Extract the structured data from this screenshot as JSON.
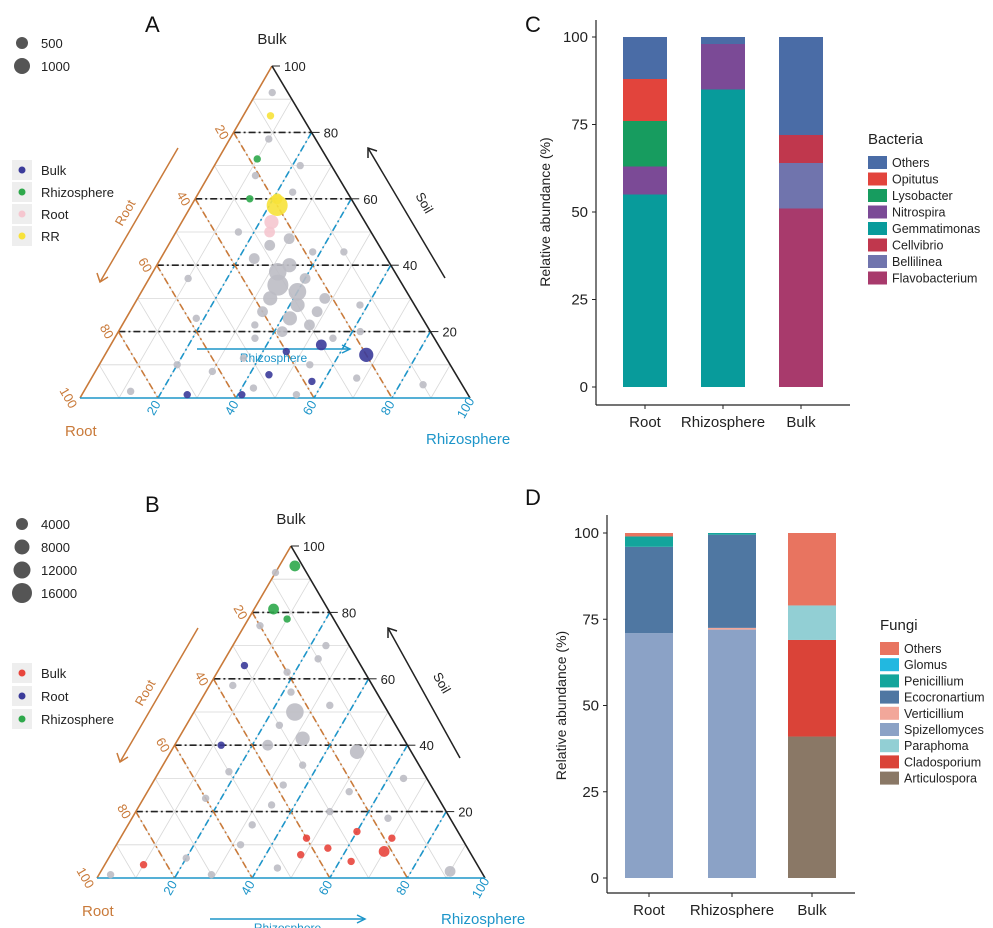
{
  "colors": {
    "root": "#c97a3a",
    "rhizo": "#1d95c9",
    "bulk": "#222222",
    "grid": "#d8d8d8",
    "grey_point": "#bcbcc4"
  },
  "chart_data": [
    {
      "panel": "A",
      "type": "scatter",
      "subtype": "ternary",
      "apex_label": "Bulk",
      "left_label": "Root",
      "right_label": "Rhizosphere",
      "side_left_label": "Root",
      "side_right_label": "Soil",
      "bottom_arrow_label": "Rhizosphere",
      "ticks": [
        "20",
        "40",
        "60",
        "80",
        "100"
      ],
      "size_legend": [
        {
          "label": "500",
          "value": 500
        },
        {
          "label": "1000",
          "value": 1000
        }
      ],
      "color_legend": [
        {
          "label": "Bulk",
          "color": "#3b3b9a"
        },
        {
          "label": "Rhizosphere",
          "color": "#2ea84b"
        },
        {
          "label": "Root",
          "color": "#f5c6cf"
        },
        {
          "label": "RR",
          "color": "#f7e23a"
        }
      ],
      "points": [
        {
          "a": 92,
          "b": 4,
          "c": 4,
          "g": "grey",
          "s": 1
        },
        {
          "a": 85,
          "b": 8,
          "c": 7,
          "g": "RR",
          "s": 1
        },
        {
          "a": 78,
          "b": 12,
          "c": 10,
          "g": "grey",
          "s": 1
        },
        {
          "a": 72,
          "b": 18,
          "c": 10,
          "g": "Rhizosphere",
          "s": 1
        },
        {
          "a": 70,
          "b": 8,
          "c": 22,
          "g": "grey",
          "s": 1
        },
        {
          "a": 67,
          "b": 21,
          "c": 12,
          "g": "grey",
          "s": 1
        },
        {
          "a": 60,
          "b": 19,
          "c": 21,
          "g": "RR",
          "s": 2
        },
        {
          "a": 58,
          "b": 20,
          "c": 22,
          "g": "RR",
          "s": 5
        },
        {
          "a": 60,
          "b": 26,
          "c": 14,
          "g": "Rhizosphere",
          "s": 1
        },
        {
          "a": 62,
          "b": 14,
          "c": 24,
          "g": "grey",
          "s": 1
        },
        {
          "a": 53,
          "b": 24,
          "c": 23,
          "g": "Root",
          "s": 3
        },
        {
          "a": 50,
          "b": 26,
          "c": 24,
          "g": "Root",
          "s": 2
        },
        {
          "a": 48,
          "b": 22,
          "c": 30,
          "g": "grey",
          "s": 2
        },
        {
          "a": 46,
          "b": 28,
          "c": 26,
          "g": "grey",
          "s": 2
        },
        {
          "a": 44,
          "b": 18,
          "c": 38,
          "g": "grey",
          "s": 1
        },
        {
          "a": 42,
          "b": 34,
          "c": 24,
          "g": "grey",
          "s": 2
        },
        {
          "a": 40,
          "b": 26,
          "c": 34,
          "g": "grey",
          "s": 3
        },
        {
          "a": 38,
          "b": 30,
          "c": 32,
          "g": "grey",
          "s": 4
        },
        {
          "a": 36,
          "b": 24,
          "c": 40,
          "g": "grey",
          "s": 2
        },
        {
          "a": 34,
          "b": 32,
          "c": 34,
          "g": "grey",
          "s": 5
        },
        {
          "a": 32,
          "b": 28,
          "c": 40,
          "g": "grey",
          "s": 4
        },
        {
          "a": 30,
          "b": 36,
          "c": 34,
          "g": "grey",
          "s": 3
        },
        {
          "a": 30,
          "b": 22,
          "c": 48,
          "g": "grey",
          "s": 2
        },
        {
          "a": 28,
          "b": 30,
          "c": 42,
          "g": "grey",
          "s": 3
        },
        {
          "a": 26,
          "b": 40,
          "c": 34,
          "g": "grey",
          "s": 2
        },
        {
          "a": 26,
          "b": 26,
          "c": 48,
          "g": "grey",
          "s": 2
        },
        {
          "a": 24,
          "b": 34,
          "c": 42,
          "g": "grey",
          "s": 3
        },
        {
          "a": 22,
          "b": 44,
          "c": 34,
          "g": "grey",
          "s": 1
        },
        {
          "a": 22,
          "b": 30,
          "c": 48,
          "g": "grey",
          "s": 2
        },
        {
          "a": 20,
          "b": 38,
          "c": 42,
          "g": "grey",
          "s": 2
        },
        {
          "a": 18,
          "b": 26,
          "c": 56,
          "g": "grey",
          "s": 1
        },
        {
          "a": 18,
          "b": 46,
          "c": 36,
          "g": "grey",
          "s": 1
        },
        {
          "a": 16,
          "b": 30,
          "c": 54,
          "g": "Bulk",
          "s": 2
        },
        {
          "a": 14,
          "b": 40,
          "c": 46,
          "g": "Bulk",
          "s": 1
        },
        {
          "a": 13,
          "b": 20,
          "c": 67,
          "g": "Bulk",
          "s": 3
        },
        {
          "a": 12,
          "b": 52,
          "c": 36,
          "g": "grey",
          "s": 1
        },
        {
          "a": 10,
          "b": 36,
          "c": 54,
          "g": "grey",
          "s": 1
        },
        {
          "a": 8,
          "b": 62,
          "c": 30,
          "g": "grey",
          "s": 1
        },
        {
          "a": 7,
          "b": 48,
          "c": 45,
          "g": "Bulk",
          "s": 1
        },
        {
          "a": 6,
          "b": 26,
          "c": 68,
          "g": "grey",
          "s": 1
        },
        {
          "a": 5,
          "b": 38,
          "c": 57,
          "g": "Bulk",
          "s": 1
        },
        {
          "a": 3,
          "b": 54,
          "c": 43,
          "g": "grey",
          "s": 1
        },
        {
          "a": 1,
          "b": 72,
          "c": 27,
          "g": "Bulk",
          "s": 1
        },
        {
          "a": 1,
          "b": 58,
          "c": 41,
          "g": "Bulk",
          "s": 1
        },
        {
          "a": 1,
          "b": 44,
          "c": 55,
          "g": "grey",
          "s": 1
        },
        {
          "a": 2,
          "b": 86,
          "c": 12,
          "g": "grey",
          "s": 1
        },
        {
          "a": 4,
          "b": 10,
          "c": 86,
          "g": "grey",
          "s": 1
        },
        {
          "a": 36,
          "b": 54,
          "c": 10,
          "g": "grey",
          "s": 1
        },
        {
          "a": 44,
          "b": 10,
          "c": 46,
          "g": "grey",
          "s": 1
        },
        {
          "a": 50,
          "b": 34,
          "c": 16,
          "g": "grey",
          "s": 1
        },
        {
          "a": 24,
          "b": 58,
          "c": 18,
          "g": "grey",
          "s": 1
        },
        {
          "a": 28,
          "b": 14,
          "c": 58,
          "g": "grey",
          "s": 1
        },
        {
          "a": 10,
          "b": 70,
          "c": 20,
          "g": "grey",
          "s": 1
        },
        {
          "a": 20,
          "b": 18,
          "c": 62,
          "g": "grey",
          "s": 1
        }
      ]
    },
    {
      "panel": "B",
      "type": "scatter",
      "subtype": "ternary",
      "apex_label": "Bulk",
      "left_label": "Root",
      "right_label": "Rhizosphere",
      "side_left_label": "Root",
      "side_right_label": "Soil",
      "bottom_arrow_label": "Rhizosphere",
      "ticks": [
        "20",
        "40",
        "60",
        "80",
        "100"
      ],
      "size_legend": [
        {
          "label": "4000",
          "value": 4000
        },
        {
          "label": "8000",
          "value": 8000
        },
        {
          "label": "12000",
          "value": 12000
        },
        {
          "label": "16000",
          "value": 16000
        }
      ],
      "color_legend": [
        {
          "label": "Bulk",
          "color": "#e8453c"
        },
        {
          "label": "Root",
          "color": "#3b3b9a"
        },
        {
          "label": "Rhizosphere",
          "color": "#2ea84b"
        }
      ],
      "points": [
        {
          "a": 94,
          "b": 2,
          "c": 4,
          "g": "Rhizosphere",
          "s": 2
        },
        {
          "a": 92,
          "b": 8,
          "c": 0,
          "g": "grey",
          "s": 1
        },
        {
          "a": 81,
          "b": 14,
          "c": 5,
          "g": "Rhizosphere",
          "s": 2
        },
        {
          "a": 78,
          "b": 12,
          "c": 10,
          "g": "Rhizosphere",
          "s": 1
        },
        {
          "a": 76,
          "b": 20,
          "c": 4,
          "g": "grey",
          "s": 1
        },
        {
          "a": 70,
          "b": 6,
          "c": 24,
          "g": "grey",
          "s": 1
        },
        {
          "a": 64,
          "b": 30,
          "c": 6,
          "g": "Root",
          "s": 1
        },
        {
          "a": 62,
          "b": 20,
          "c": 18,
          "g": "grey",
          "s": 1
        },
        {
          "a": 56,
          "b": 22,
          "c": 22,
          "g": "grey",
          "s": 1
        },
        {
          "a": 52,
          "b": 14,
          "c": 34,
          "g": "grey",
          "s": 1
        },
        {
          "a": 50,
          "b": 24,
          "c": 26,
          "g": "grey",
          "s": 4
        },
        {
          "a": 46,
          "b": 30,
          "c": 24,
          "g": "grey",
          "s": 1
        },
        {
          "a": 42,
          "b": 26,
          "c": 32,
          "g": "grey",
          "s": 3
        },
        {
          "a": 40,
          "b": 48,
          "c": 12,
          "g": "Root",
          "s": 1
        },
        {
          "a": 40,
          "b": 36,
          "c": 24,
          "g": "grey",
          "s": 2
        },
        {
          "a": 38,
          "b": 14,
          "c": 48,
          "g": "grey",
          "s": 3
        },
        {
          "a": 34,
          "b": 30,
          "c": 36,
          "g": "grey",
          "s": 1
        },
        {
          "a": 32,
          "b": 50,
          "c": 18,
          "g": "grey",
          "s": 1
        },
        {
          "a": 28,
          "b": 38,
          "c": 34,
          "g": "grey",
          "s": 1
        },
        {
          "a": 26,
          "b": 22,
          "c": 52,
          "g": "grey",
          "s": 1
        },
        {
          "a": 24,
          "b": 60,
          "c": 16,
          "g": "grey",
          "s": 1
        },
        {
          "a": 22,
          "b": 44,
          "c": 34,
          "g": "grey",
          "s": 1
        },
        {
          "a": 20,
          "b": 30,
          "c": 50,
          "g": "grey",
          "s": 1
        },
        {
          "a": 18,
          "b": 16,
          "c": 66,
          "g": "grey",
          "s": 1
        },
        {
          "a": 16,
          "b": 52,
          "c": 32,
          "g": "grey",
          "s": 1
        },
        {
          "a": 14,
          "b": 26,
          "c": 60,
          "g": "Bulk",
          "s": 1
        },
        {
          "a": 12,
          "b": 40,
          "c": 48,
          "g": "Bulk",
          "s": 1
        },
        {
          "a": 12,
          "b": 18,
          "c": 70,
          "g": "Bulk",
          "s": 1
        },
        {
          "a": 10,
          "b": 58,
          "c": 32,
          "g": "grey",
          "s": 1
        },
        {
          "a": 9,
          "b": 36,
          "c": 55,
          "g": "Bulk",
          "s": 1
        },
        {
          "a": 8,
          "b": 22,
          "c": 70,
          "g": "Bulk",
          "s": 2
        },
        {
          "a": 7,
          "b": 44,
          "c": 49,
          "g": "Bulk",
          "s": 1
        },
        {
          "a": 6,
          "b": 74,
          "c": 20,
          "g": "grey",
          "s": 1
        },
        {
          "a": 5,
          "b": 32,
          "c": 63,
          "g": "Bulk",
          "s": 1
        },
        {
          "a": 4,
          "b": 86,
          "c": 10,
          "g": "Bulk",
          "s": 1
        },
        {
          "a": 3,
          "b": 52,
          "c": 45,
          "g": "grey",
          "s": 1
        },
        {
          "a": 2,
          "b": 8,
          "c": 90,
          "g": "grey",
          "s": 2
        },
        {
          "a": 1,
          "b": 96,
          "c": 3,
          "g": "grey",
          "s": 1
        },
        {
          "a": 1,
          "b": 70,
          "c": 29,
          "g": "grey",
          "s": 1
        },
        {
          "a": 30,
          "b": 6,
          "c": 64,
          "g": "grey",
          "s": 1
        },
        {
          "a": 58,
          "b": 36,
          "c": 6,
          "g": "grey",
          "s": 1
        },
        {
          "a": 66,
          "b": 10,
          "c": 24,
          "g": "grey",
          "s": 1
        }
      ]
    },
    {
      "panel": "C",
      "type": "bar",
      "subtype": "stacked",
      "categories": [
        "Root",
        "Rhizosphere",
        "Bulk"
      ],
      "ylabel": "Relative abundance (%)",
      "ylim": [
        0,
        100
      ],
      "yticks": [
        0,
        25,
        50,
        75,
        100
      ],
      "legend_title": "Bacteria",
      "legend": [
        "Others",
        "Opitutus",
        "Lysobacter",
        "Nitrospira",
        "Gemmatimonas",
        "Cellvibrio",
        "Bellilinea",
        "Flavobacterium"
      ],
      "stack_order": [
        "Flavobacterium",
        "Bellilinea",
        "Cellvibrio",
        "Gemmatimonas",
        "Nitrospira",
        "Lysobacter",
        "Opitutus",
        "Others"
      ],
      "series": [
        {
          "name": "Others",
          "color": "#4a6ca6",
          "values": [
            12,
            2,
            28
          ]
        },
        {
          "name": "Opitutus",
          "color": "#e2443c",
          "values": [
            12,
            0,
            0
          ]
        },
        {
          "name": "Lysobacter",
          "color": "#179c5f",
          "values": [
            13,
            0,
            0
          ]
        },
        {
          "name": "Nitrospira",
          "color": "#7b4a96",
          "values": [
            8,
            13,
            0
          ]
        },
        {
          "name": "Gemmatimonas",
          "color": "#089b9b",
          "values": [
            55,
            85,
            0
          ]
        },
        {
          "name": "Cellvibrio",
          "color": "#c0374d",
          "values": [
            0,
            0,
            8
          ]
        },
        {
          "name": "Bellilinea",
          "color": "#7074ad",
          "values": [
            0,
            0,
            13
          ]
        },
        {
          "name": "Flavobacterium",
          "color": "#a83a6c",
          "values": [
            0,
            0,
            51
          ]
        }
      ]
    },
    {
      "panel": "D",
      "type": "bar",
      "subtype": "stacked",
      "categories": [
        "Root",
        "Rhizosphere",
        "Bulk"
      ],
      "ylabel": "Relative abundance (%)",
      "ylim": [
        0,
        100
      ],
      "yticks": [
        0,
        25,
        50,
        75,
        100
      ],
      "legend_title": "Fungi",
      "legend": [
        "Others",
        "Glomus",
        "Penicillium",
        "Ecocronartium",
        "Verticillium",
        "Spizellomyces",
        "Paraphoma",
        "Cladosporium",
        "Articulospora"
      ],
      "stack_order": [
        "Articulospora",
        "Cladosporium",
        "Paraphoma",
        "Spizellomyces",
        "Verticillium",
        "Ecocronartium",
        "Penicillium",
        "Glomus",
        "Others"
      ],
      "series": [
        {
          "name": "Others",
          "color": "#e87460",
          "values": [
            1,
            0,
            21
          ]
        },
        {
          "name": "Glomus",
          "color": "#22b8e0",
          "values": [
            0,
            0,
            0
          ]
        },
        {
          "name": "Penicillium",
          "color": "#13a59c",
          "values": [
            3,
            0.5,
            0
          ]
        },
        {
          "name": "Ecocronartium",
          "color": "#4f77a2",
          "values": [
            25,
            27,
            0
          ]
        },
        {
          "name": "Verticillium",
          "color": "#f2a79a",
          "values": [
            0,
            0.5,
            0
          ]
        },
        {
          "name": "Spizellomyces",
          "color": "#8ba2c6",
          "values": [
            71,
            72,
            0
          ]
        },
        {
          "name": "Paraphoma",
          "color": "#92cfd4",
          "values": [
            0,
            0,
            10
          ]
        },
        {
          "name": "Cladosporium",
          "color": "#da4338",
          "values": [
            0,
            0,
            28
          ]
        },
        {
          "name": "Articulospora",
          "color": "#8a7866",
          "values": [
            0,
            0,
            41
          ]
        }
      ]
    }
  ]
}
